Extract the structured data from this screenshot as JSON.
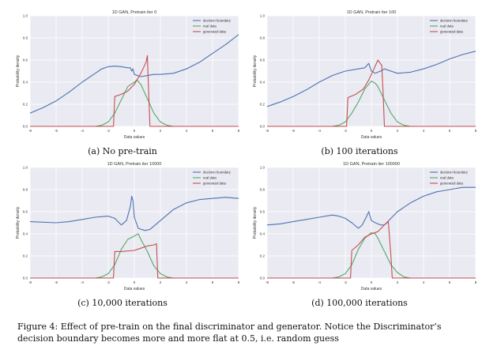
{
  "chart_data": [
    {
      "type": "line",
      "title": "1D GAN, Pretrain iter 0",
      "xlabel": "Data values",
      "ylabel": "Probability density",
      "xlim": [
        -8,
        8
      ],
      "ylim": [
        0,
        1.0
      ],
      "xticks": [
        -8,
        -6,
        -4,
        -2,
        0,
        2,
        4,
        6,
        8
      ],
      "yticks": [
        0.0,
        0.2,
        0.4,
        0.6,
        0.8,
        1.0
      ],
      "ytick_labels": [
        "0.0",
        "0.2",
        "0.4",
        "0.6",
        "0.8",
        "1.0"
      ],
      "grid": true,
      "legend": "top-right",
      "series": [
        {
          "name": "decision boundary",
          "color": "#4c72b0",
          "points": [
            [
              -8,
              0.12
            ],
            [
              -7,
              0.17
            ],
            [
              -6,
              0.23
            ],
            [
              -5,
              0.31
            ],
            [
              -4,
              0.4
            ],
            [
              -3,
              0.48
            ],
            [
              -2.5,
              0.52
            ],
            [
              -2,
              0.54
            ],
            [
              -1.5,
              0.545
            ],
            [
              -1,
              0.54
            ],
            [
              -0.5,
              0.53
            ],
            [
              -0.3,
              0.53
            ],
            [
              -0.2,
              0.5
            ],
            [
              -0.1,
              0.52
            ],
            [
              0,
              0.47
            ],
            [
              0.5,
              0.45
            ],
            [
              1,
              0.46
            ],
            [
              1.5,
              0.47
            ],
            [
              2,
              0.47
            ],
            [
              3,
              0.48
            ],
            [
              4,
              0.52
            ],
            [
              5,
              0.58
            ],
            [
              6,
              0.66
            ],
            [
              7,
              0.74
            ],
            [
              8,
              0.83
            ]
          ]
        },
        {
          "name": "real data",
          "color": "#55a868",
          "points": [
            [
              -3,
              0
            ],
            [
              -2.5,
              0.01
            ],
            [
              -2,
              0.04
            ],
            [
              -1.5,
              0.12
            ],
            [
              -1,
              0.24
            ],
            [
              -0.5,
              0.36
            ],
            [
              0,
              0.4
            ],
            [
              0.2,
              0.42
            ],
            [
              0.5,
              0.38
            ],
            [
              1,
              0.25
            ],
            [
              1.5,
              0.12
            ],
            [
              2,
              0.04
            ],
            [
              2.5,
              0.01
            ],
            [
              3,
              0
            ],
            [
              8,
              0
            ]
          ]
        },
        {
          "name": "generated data",
          "color": "#c44e52",
          "points": [
            [
              -8,
              0
            ],
            [
              -1.6,
              0
            ],
            [
              -1.5,
              0.27
            ],
            [
              -1.0,
              0.29
            ],
            [
              -0.5,
              0.32
            ],
            [
              0,
              0.38
            ],
            [
              0.5,
              0.48
            ],
            [
              0.9,
              0.58
            ],
            [
              1.0,
              0.64
            ],
            [
              1.1,
              0.3
            ],
            [
              1.2,
              0
            ],
            [
              8,
              0
            ]
          ]
        }
      ]
    },
    {
      "type": "line",
      "title": "1D GAN, Pretrain iter 100",
      "xlabel": "Data values",
      "ylabel": "Probability density",
      "xlim": [
        -8,
        8
      ],
      "ylim": [
        0,
        1.0
      ],
      "xticks": [
        -8,
        -6,
        -4,
        -2,
        0,
        2,
        4,
        6,
        8
      ],
      "yticks": [
        0.0,
        0.2,
        0.4,
        0.6,
        0.8,
        1.0
      ],
      "ytick_labels": [
        "0.0",
        "0.2",
        "0.4",
        "0.6",
        "0.8",
        "1.0"
      ],
      "grid": true,
      "legend": "top-right",
      "series": [
        {
          "name": "decision boundary",
          "color": "#4c72b0",
          "points": [
            [
              -8,
              0.18
            ],
            [
              -7,
              0.22
            ],
            [
              -6,
              0.27
            ],
            [
              -5,
              0.33
            ],
            [
              -4,
              0.4
            ],
            [
              -3,
              0.46
            ],
            [
              -2,
              0.5
            ],
            [
              -1,
              0.52
            ],
            [
              -0.5,
              0.53
            ],
            [
              -0.2,
              0.57
            ],
            [
              0,
              0.5
            ],
            [
              0.3,
              0.48
            ],
            [
              0.7,
              0.5
            ],
            [
              1,
              0.52
            ],
            [
              1.5,
              0.5
            ],
            [
              2,
              0.48
            ],
            [
              3,
              0.49
            ],
            [
              4,
              0.52
            ],
            [
              5,
              0.56
            ],
            [
              6,
              0.61
            ],
            [
              7,
              0.65
            ],
            [
              8,
              0.68
            ]
          ]
        },
        {
          "name": "real data",
          "color": "#55a868",
          "points": [
            [
              -3,
              0
            ],
            [
              -2.5,
              0.01
            ],
            [
              -2,
              0.04
            ],
            [
              -1.5,
              0.12
            ],
            [
              -1,
              0.22
            ],
            [
              -0.5,
              0.34
            ],
            [
              0,
              0.41
            ],
            [
              0.3,
              0.39
            ],
            [
              0.5,
              0.36
            ],
            [
              1,
              0.24
            ],
            [
              1.5,
              0.12
            ],
            [
              2,
              0.04
            ],
            [
              2.5,
              0.01
            ],
            [
              3,
              0
            ],
            [
              8,
              0
            ]
          ]
        },
        {
          "name": "generated data",
          "color": "#c44e52",
          "points": [
            [
              -8,
              0
            ],
            [
              -1.9,
              0
            ],
            [
              -1.8,
              0.26
            ],
            [
              -1.2,
              0.29
            ],
            [
              -0.6,
              0.34
            ],
            [
              -0.2,
              0.42
            ],
            [
              0.2,
              0.52
            ],
            [
              0.5,
              0.6
            ],
            [
              0.8,
              0.55
            ],
            [
              0.9,
              0.3
            ],
            [
              1.0,
              0
            ],
            [
              8,
              0
            ]
          ]
        }
      ]
    },
    {
      "type": "line",
      "title": "1D GAN, Pretrain iter 10000",
      "xlabel": "Data values",
      "ylabel": "Probability density",
      "xlim": [
        -8,
        8
      ],
      "ylim": [
        0,
        1.0
      ],
      "xticks": [
        -8,
        -6,
        -4,
        -2,
        0,
        2,
        4,
        6,
        8
      ],
      "yticks": [
        0.0,
        0.2,
        0.4,
        0.6,
        0.8,
        1.0
      ],
      "ytick_labels": [
        "0.0",
        "0.2",
        "0.4",
        "0.6",
        "0.8",
        "1.0"
      ],
      "grid": true,
      "legend": "top-right",
      "series": [
        {
          "name": "decision boundary",
          "color": "#4c72b0",
          "points": [
            [
              -8,
              0.51
            ],
            [
              -6,
              0.5
            ],
            [
              -5,
              0.51
            ],
            [
              -4,
              0.53
            ],
            [
              -3,
              0.55
            ],
            [
              -2,
              0.56
            ],
            [
              -1.5,
              0.54
            ],
            [
              -1,
              0.48
            ],
            [
              -0.6,
              0.52
            ],
            [
              -0.3,
              0.65
            ],
            [
              -0.2,
              0.74
            ],
            [
              -0.1,
              0.7
            ],
            [
              0,
              0.55
            ],
            [
              0.3,
              0.45
            ],
            [
              0.8,
              0.43
            ],
            [
              1.2,
              0.44
            ],
            [
              2,
              0.52
            ],
            [
              3,
              0.62
            ],
            [
              4,
              0.68
            ],
            [
              5,
              0.71
            ],
            [
              6,
              0.72
            ],
            [
              7,
              0.73
            ],
            [
              8,
              0.72
            ]
          ]
        },
        {
          "name": "real data",
          "color": "#55a868",
          "points": [
            [
              -3,
              0
            ],
            [
              -2.5,
              0.01
            ],
            [
              -2,
              0.04
            ],
            [
              -1.5,
              0.12
            ],
            [
              -1,
              0.26
            ],
            [
              -0.5,
              0.35
            ],
            [
              0,
              0.38
            ],
            [
              0.3,
              0.4
            ],
            [
              0.5,
              0.35
            ],
            [
              1,
              0.24
            ],
            [
              1.5,
              0.11
            ],
            [
              2,
              0.04
            ],
            [
              2.5,
              0.01
            ],
            [
              3,
              0
            ],
            [
              8,
              0
            ]
          ]
        },
        {
          "name": "generated data",
          "color": "#c44e52",
          "points": [
            [
              -8,
              0
            ],
            [
              -1.6,
              0
            ],
            [
              -1.5,
              0.24
            ],
            [
              -1,
              0.24
            ],
            [
              0,
              0.25
            ],
            [
              0.5,
              0.27
            ],
            [
              1,
              0.29
            ],
            [
              1.5,
              0.3
            ],
            [
              1.7,
              0.31
            ],
            [
              1.8,
              0
            ],
            [
              8,
              0
            ]
          ]
        }
      ]
    },
    {
      "type": "line",
      "title": "1D GAN, Pretrain iter 100000",
      "xlabel": "Data values",
      "ylabel": "Probability density",
      "xlim": [
        -8,
        8
      ],
      "ylim": [
        0,
        1.0
      ],
      "xticks": [
        -8,
        -6,
        -4,
        -2,
        0,
        2,
        4,
        6,
        8
      ],
      "yticks": [
        0.0,
        0.2,
        0.4,
        0.6,
        0.8,
        1.0
      ],
      "ytick_labels": [
        "0.0",
        "0.2",
        "0.4",
        "0.6",
        "0.8",
        "1.0"
      ],
      "grid": true,
      "legend": "top-right",
      "series": [
        {
          "name": "decision boundary",
          "color": "#4c72b0",
          "points": [
            [
              -8,
              0.48
            ],
            [
              -7,
              0.49
            ],
            [
              -6,
              0.51
            ],
            [
              -5,
              0.53
            ],
            [
              -4,
              0.55
            ],
            [
              -3,
              0.57
            ],
            [
              -2.5,
              0.56
            ],
            [
              -2,
              0.54
            ],
            [
              -1.5,
              0.5
            ],
            [
              -1,
              0.45
            ],
            [
              -0.7,
              0.48
            ],
            [
              -0.4,
              0.55
            ],
            [
              -0.2,
              0.6
            ],
            [
              0,
              0.52
            ],
            [
              0.3,
              0.5
            ],
            [
              0.7,
              0.48
            ],
            [
              1,
              0.48
            ],
            [
              1.5,
              0.54
            ],
            [
              2,
              0.6
            ],
            [
              3,
              0.68
            ],
            [
              4,
              0.74
            ],
            [
              5,
              0.78
            ],
            [
              6,
              0.8
            ],
            [
              7,
              0.82
            ],
            [
              8,
              0.82
            ]
          ]
        },
        {
          "name": "real data",
          "color": "#55a868",
          "points": [
            [
              -3,
              0
            ],
            [
              -2.5,
              0.01
            ],
            [
              -2,
              0.04
            ],
            [
              -1.5,
              0.12
            ],
            [
              -1,
              0.26
            ],
            [
              -0.5,
              0.36
            ],
            [
              0,
              0.41
            ],
            [
              0.3,
              0.4
            ],
            [
              0.5,
              0.36
            ],
            [
              1,
              0.24
            ],
            [
              1.5,
              0.12
            ],
            [
              2,
              0.05
            ],
            [
              2.5,
              0.01
            ],
            [
              3,
              0
            ],
            [
              8,
              0
            ]
          ]
        },
        {
          "name": "generated data",
          "color": "#c44e52",
          "points": [
            [
              -8,
              0
            ],
            [
              -1.6,
              0
            ],
            [
              -1.5,
              0.25
            ],
            [
              -1,
              0.3
            ],
            [
              -0.5,
              0.37
            ],
            [
              0,
              0.4
            ],
            [
              0.5,
              0.42
            ],
            [
              1,
              0.48
            ],
            [
              1.3,
              0.51
            ],
            [
              1.5,
              0.2
            ],
            [
              1.6,
              0
            ],
            [
              8,
              0
            ]
          ]
        }
      ]
    }
  ],
  "captions": {
    "a": "(a) No pre-train",
    "b": "(b) 100 iterations",
    "c": "(c) 10,000 iterations",
    "d": "(d) 100,000 iterations"
  },
  "figure_caption": "Figure 4: Effect of pre-train on the final discriminator and generator. Notice the Discriminator’s decision boundary becomes more and more flat at 0.5, i.e. random guess"
}
